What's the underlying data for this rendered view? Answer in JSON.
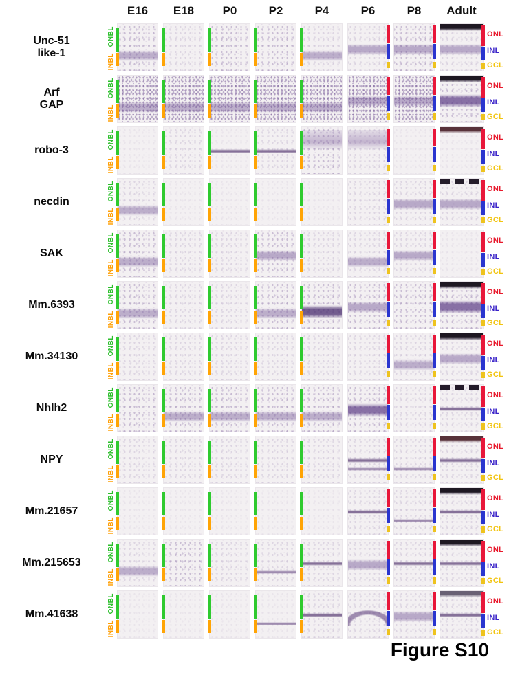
{
  "figure": {
    "caption": "Figure S10"
  },
  "header": {
    "columns": [
      "E16",
      "E18",
      "P0",
      "P2",
      "P4",
      "P6",
      "P8",
      "Adult"
    ]
  },
  "layer_labels": {
    "early": [
      {
        "text": "ONBL",
        "color": "#2bbf2b"
      },
      {
        "text": "INBL",
        "color": "#ff9f05"
      }
    ],
    "late": [
      {
        "text": "ONL",
        "color": "#e8192c",
        "top_pct": 14
      },
      {
        "text": "INL",
        "color": "#3a23c8",
        "top_pct": 48
      },
      {
        "text": "GCL",
        "color": "#f2c410",
        "top_pct": 79
      }
    ]
  },
  "bars": {
    "early": [
      {
        "name": "onbl-bar",
        "color": "#2fca2f",
        "side": "left",
        "top_pct": 10,
        "height_pct": 48
      },
      {
        "name": "inbl-bar",
        "color": "#ffa405",
        "side": "left",
        "top_pct": 62,
        "height_pct": 26
      }
    ],
    "late": [
      {
        "name": "onl-bar",
        "color": "#e8173a",
        "side": "right",
        "top_pct": 4,
        "height_pct": 38
      },
      {
        "name": "inl-bar",
        "color": "#2a35cf",
        "side": "right",
        "top_pct": 43,
        "height_pct": 31
      },
      {
        "name": "gcl-bar",
        "color": "#eec31e",
        "side": "right",
        "top_pct": 80,
        "height_pct": 13
      }
    ],
    "adult": [
      {
        "name": "onl-bar",
        "color": "#e8173a",
        "side": "right",
        "top_pct": 4,
        "height_pct": 43
      },
      {
        "name": "inl-bar",
        "color": "#2a35cf",
        "side": "right",
        "top_pct": 48,
        "height_pct": 29
      },
      {
        "name": "gcl-bar",
        "color": "#eec31e",
        "side": "right",
        "top_pct": 81,
        "height_pct": 13
      }
    ]
  },
  "column_bar_sets": [
    "early",
    "early",
    "early",
    "early",
    "early",
    "late",
    "late",
    "adult"
  ],
  "rows": [
    {
      "gene": "Unc-51 like-1",
      "lines": [
        "Unc-51",
        "like-1"
      ],
      "cells": [
        {
          "texture": "medium",
          "bands": [
            "low"
          ]
        },
        {
          "texture": "light",
          "bands": []
        },
        {
          "texture": "medium",
          "bands": []
        },
        {
          "texture": "medium",
          "bands": []
        },
        {
          "texture": "light",
          "bands": [
            "low"
          ]
        },
        {
          "texture": "light",
          "bands": [
            "mid"
          ]
        },
        {
          "texture": "medium",
          "bands": [
            "mid"
          ]
        },
        {
          "texture": "light",
          "bands": [
            "darktop",
            "mid"
          ]
        }
      ]
    },
    {
      "gene": "Arf GAP",
      "lines": [
        "Arf",
        "GAP"
      ],
      "cells": [
        {
          "texture": "dense",
          "bands": [
            "low"
          ]
        },
        {
          "texture": "dense",
          "bands": [
            "low"
          ]
        },
        {
          "texture": "dense",
          "bands": [
            "low"
          ]
        },
        {
          "texture": "dense",
          "bands": [
            "low"
          ]
        },
        {
          "texture": "dense",
          "bands": [
            "low"
          ]
        },
        {
          "texture": "dense",
          "bands": [
            "mid"
          ]
        },
        {
          "texture": "dense",
          "bands": [
            "mid"
          ]
        },
        {
          "texture": "medium",
          "bands": [
            "darktop",
            "mid-strong"
          ]
        }
      ]
    },
    {
      "gene": "robo-3",
      "lines": [
        "robo-3"
      ],
      "cells": [
        {
          "texture": "faint",
          "bands": []
        },
        {
          "texture": "light",
          "bands": []
        },
        {
          "texture": "faint",
          "bands": [
            "line-mid"
          ]
        },
        {
          "texture": "light",
          "bands": [
            "line-mid"
          ]
        },
        {
          "texture": "medium",
          "bands": [
            "upper"
          ]
        },
        {
          "texture": "light",
          "bands": [
            "upper"
          ]
        },
        {
          "texture": "faint",
          "bands": []
        },
        {
          "texture": "faint",
          "bands": [
            "darktop-brown"
          ]
        }
      ]
    },
    {
      "gene": "necdin",
      "lines": [
        "necdin"
      ],
      "cells": [
        {
          "texture": "light",
          "bands": [
            "low"
          ]
        },
        {
          "texture": "faint",
          "bands": []
        },
        {
          "texture": "faint",
          "bands": []
        },
        {
          "texture": "faint",
          "bands": []
        },
        {
          "texture": "faint",
          "bands": []
        },
        {
          "texture": "light",
          "bands": []
        },
        {
          "texture": "light",
          "bands": [
            "mid"
          ]
        },
        {
          "texture": "light",
          "bands": [
            "darktop-broken",
            "mid"
          ]
        }
      ]
    },
    {
      "gene": "SAK",
      "lines": [
        "SAK"
      ],
      "cells": [
        {
          "texture": "medium",
          "bands": [
            "low"
          ]
        },
        {
          "texture": "light",
          "bands": []
        },
        {
          "texture": "light",
          "bands": []
        },
        {
          "texture": "medium",
          "bands": [
            "mid"
          ]
        },
        {
          "texture": "light",
          "bands": []
        },
        {
          "texture": "light",
          "bands": [
            "low"
          ]
        },
        {
          "texture": "light",
          "bands": [
            "mid"
          ]
        },
        {
          "texture": "faint",
          "bands": []
        }
      ]
    },
    {
      "gene": "Mm.6393",
      "lines": [
        "Mm.6393"
      ],
      "cells": [
        {
          "texture": "medium",
          "bands": [
            "low"
          ]
        },
        {
          "texture": "light",
          "bands": []
        },
        {
          "texture": "light",
          "bands": []
        },
        {
          "texture": "medium",
          "bands": [
            "low"
          ]
        },
        {
          "texture": "medium",
          "bands": [
            "low-strong"
          ]
        },
        {
          "texture": "medium",
          "bands": [
            "mid"
          ]
        },
        {
          "texture": "medium",
          "bands": []
        },
        {
          "texture": "medium",
          "bands": [
            "darktop",
            "mid-strong"
          ]
        }
      ]
    },
    {
      "gene": "Mm.34130",
      "lines": [
        "Mm.34130"
      ],
      "cells": [
        {
          "texture": "light",
          "bands": []
        },
        {
          "texture": "light",
          "bands": []
        },
        {
          "texture": "light",
          "bands": []
        },
        {
          "texture": "light",
          "bands": []
        },
        {
          "texture": "light",
          "bands": []
        },
        {
          "texture": "light",
          "bands": []
        },
        {
          "texture": "light",
          "bands": [
            "low"
          ]
        },
        {
          "texture": "light",
          "bands": [
            "darktop",
            "mid"
          ]
        }
      ]
    },
    {
      "gene": "Nhlh2",
      "lines": [
        "Nhlh2"
      ],
      "cells": [
        {
          "texture": "medium",
          "bands": []
        },
        {
          "texture": "medium",
          "bands": [
            "low"
          ]
        },
        {
          "texture": "medium",
          "bands": [
            "low"
          ]
        },
        {
          "texture": "medium",
          "bands": [
            "low"
          ]
        },
        {
          "texture": "medium",
          "bands": [
            "low"
          ]
        },
        {
          "texture": "medium",
          "bands": [
            "mid-strong"
          ]
        },
        {
          "texture": "light",
          "bands": []
        },
        {
          "texture": "light",
          "bands": [
            "darktop-broken",
            "line-mid"
          ]
        }
      ]
    },
    {
      "gene": "NPY",
      "lines": [
        "NPY"
      ],
      "cells": [
        {
          "texture": "light",
          "bands": []
        },
        {
          "texture": "light",
          "bands": []
        },
        {
          "texture": "light",
          "bands": []
        },
        {
          "texture": "light",
          "bands": []
        },
        {
          "texture": "light",
          "bands": []
        },
        {
          "texture": "light",
          "bands": [
            "line-mid",
            "line-low"
          ]
        },
        {
          "texture": "light",
          "bands": [
            "line-low"
          ]
        },
        {
          "texture": "light",
          "bands": [
            "darktop-brown",
            "line-mid"
          ]
        }
      ]
    },
    {
      "gene": "Mm.21657",
      "lines": [
        "Mm.21657"
      ],
      "cells": [
        {
          "texture": "faint",
          "bands": []
        },
        {
          "texture": "faint",
          "bands": []
        },
        {
          "texture": "faint",
          "bands": []
        },
        {
          "texture": "faint",
          "bands": []
        },
        {
          "texture": "faint",
          "bands": []
        },
        {
          "texture": "light",
          "bands": [
            "line-mid"
          ]
        },
        {
          "texture": "light",
          "bands": [
            "line-low"
          ]
        },
        {
          "texture": "light",
          "bands": [
            "darktop",
            "line-mid"
          ]
        }
      ]
    },
    {
      "gene": "Mm.215653",
      "lines": [
        "Mm.215653"
      ],
      "cells": [
        {
          "texture": "light",
          "bands": [
            "low"
          ]
        },
        {
          "texture": "medium",
          "bands": []
        },
        {
          "texture": "light",
          "bands": []
        },
        {
          "texture": "light",
          "bands": [
            "line-low"
          ]
        },
        {
          "texture": "light",
          "bands": [
            "line-mid"
          ]
        },
        {
          "texture": "light",
          "bands": [
            "mid"
          ]
        },
        {
          "texture": "light",
          "bands": [
            "line-mid"
          ]
        },
        {
          "texture": "light",
          "bands": [
            "darktop",
            "line-mid"
          ]
        }
      ]
    },
    {
      "gene": "Mm.41638",
      "lines": [
        "Mm.41638"
      ],
      "cells": [
        {
          "texture": "faint",
          "bands": []
        },
        {
          "texture": "faint",
          "bands": []
        },
        {
          "texture": "faint",
          "bands": []
        },
        {
          "texture": "faint",
          "bands": [
            "line-low"
          ]
        },
        {
          "texture": "light",
          "bands": [
            "line-mid"
          ]
        },
        {
          "texture": "light",
          "bands": [
            "arc"
          ]
        },
        {
          "texture": "light",
          "bands": [
            "mid"
          ]
        },
        {
          "texture": "light",
          "bands": [
            "darktop-gray",
            "line-mid"
          ]
        }
      ]
    }
  ],
  "layout_note_colors": {
    "tile_bg": "#f3f0f2",
    "stain_purple": "#7c5ea0",
    "header_text": "#111111"
  }
}
